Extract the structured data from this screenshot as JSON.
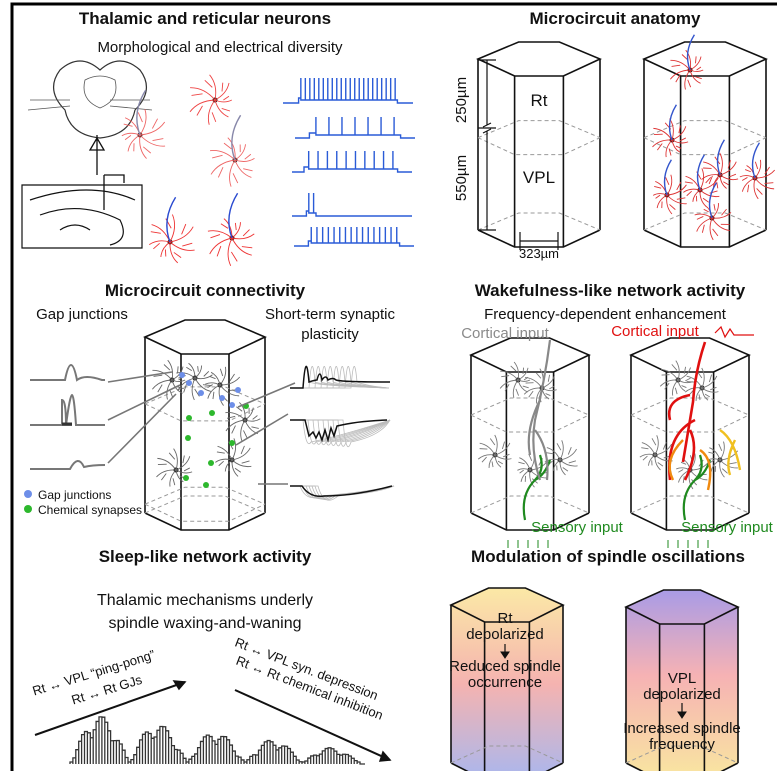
{
  "panels": [
    {
      "title": "Thalamic and reticular neurons",
      "subtitle": "Morphological and electrical diversity"
    },
    {
      "title": "Microcircuit anatomy",
      "labels": [
        "250µm",
        "550µm",
        "Rt",
        "VPL",
        "323µm"
      ]
    },
    {
      "title": "Microcircuit connectivity",
      "labels": [
        "Gap junctions",
        "Short-term synaptic",
        "plasticity"
      ],
      "legend": [
        "Gap junctions",
        "Chemical synapses"
      ]
    },
    {
      "title": "Wakefulness-like network activity",
      "subtitle": "Frequency-dependent enhancement",
      "labels": [
        "Cortical input",
        "Cortical input",
        "Sensory input",
        "Sensory input"
      ]
    },
    {
      "title": "Sleep-like network activity",
      "subtitle": [
        "Thalamic mechanisms underly",
        "spindle waxing-and-waning"
      ],
      "labels": [
        "Rt ↔ VPL “ping-pong”",
        "Rt ↔ Rt GJs",
        "Rt ↔ VPL syn. depression",
        "Rt ↔ Rt chemical inhibition"
      ]
    },
    {
      "title": "Modulation of spindle oscillations",
      "labels": [
        "Rt",
        "depolarized",
        "Reduced spindle",
        "occurrence",
        "VPL",
        "depolarized",
        "Increased spindle",
        "frequency"
      ]
    }
  ]
}
